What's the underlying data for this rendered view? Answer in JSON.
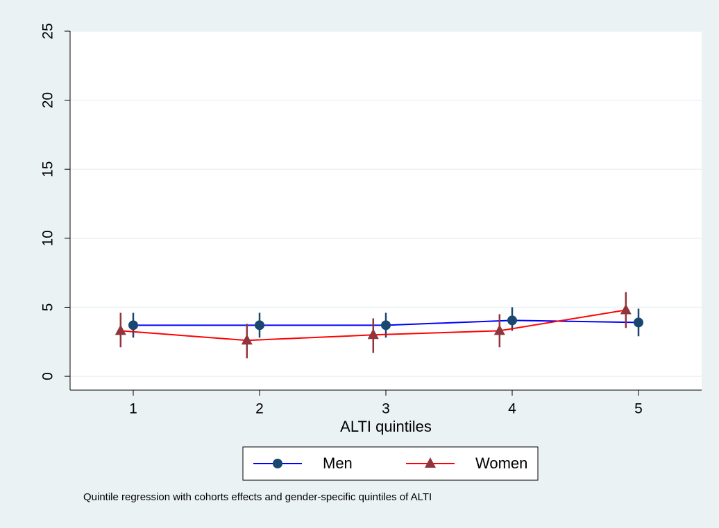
{
  "chart_data": {
    "type": "line",
    "xlabel": "ALTI quintiles",
    "note": "Quintile regression with cohorts effects and gender-specific quintiles of ALTI",
    "xlim": [
      0.5,
      5.5
    ],
    "xticks": [
      1,
      2,
      3,
      4,
      5
    ],
    "ylim": [
      -1,
      25
    ],
    "yticks": [
      0,
      5,
      10,
      15,
      20,
      25
    ],
    "grid": true,
    "legend": "bottom",
    "series": [
      {
        "name": "Men",
        "color": "#0000ff",
        "marker_color": "#1a476f",
        "marker": "circle",
        "x": [
          1,
          2,
          3,
          4,
          5
        ],
        "values": [
          3.7,
          3.7,
          3.7,
          4.05,
          3.9
        ],
        "lower": [
          2.8,
          2.8,
          2.8,
          3.3,
          2.9
        ],
        "upper": [
          4.6,
          4.6,
          4.6,
          5.0,
          4.9
        ]
      },
      {
        "name": "Women",
        "color": "#ff0000",
        "marker_color": "#90353b",
        "marker": "triangle",
        "x": [
          0.9,
          1.9,
          2.9,
          3.9,
          4.9
        ],
        "values": [
          3.3,
          2.6,
          3.0,
          3.3,
          4.8
        ],
        "lower": [
          2.1,
          1.3,
          1.7,
          2.1,
          3.5
        ],
        "upper": [
          4.6,
          3.8,
          4.2,
          4.5,
          6.1
        ]
      }
    ]
  }
}
